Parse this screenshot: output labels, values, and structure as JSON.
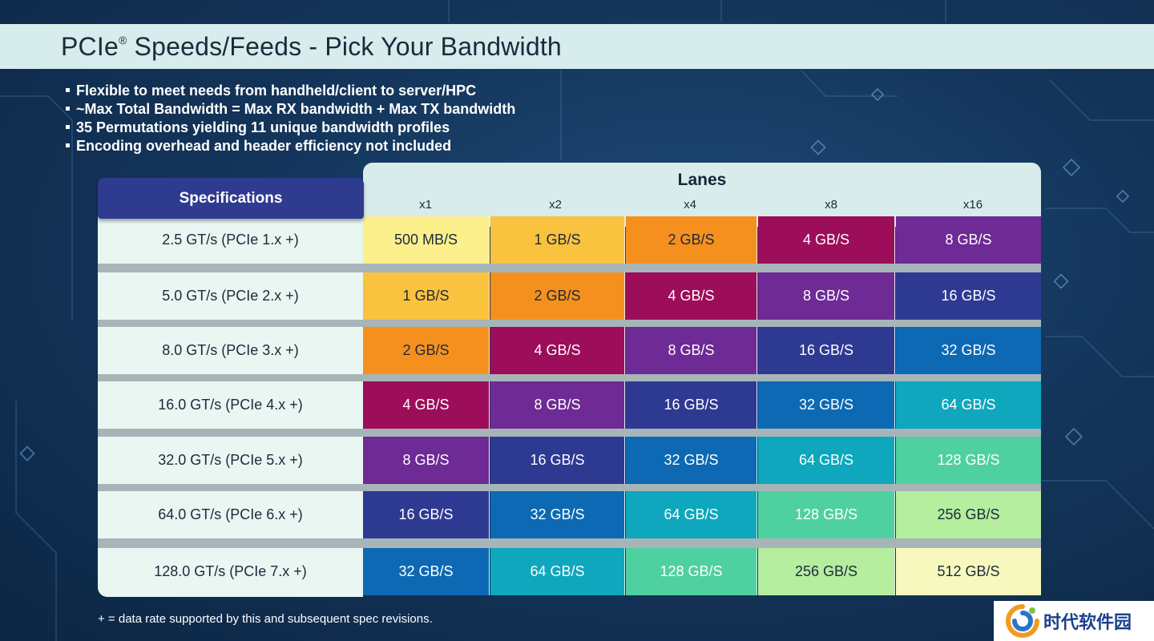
{
  "slide": {
    "title_main": "PCIe",
    "title_mark": "®",
    "title_rest": " Speeds/Feeds - Pick Your Bandwidth"
  },
  "bullets": [
    "Flexible to meet needs from handheld/client to server/HPC",
    "~Max Total Bandwidth = Max RX bandwidth + Max TX bandwidth",
    "35 Permutations yielding 11 unique bandwidth profiles",
    "Encoding overhead and header efficiency not included"
  ],
  "table": {
    "spec_header": "Specifications",
    "lanes_header": "Lanes",
    "lanes": [
      "x1",
      "x2",
      "x4",
      "x8",
      "x16"
    ],
    "rows": [
      {
        "spec": "2.5 GT/s (PCIe 1.x +)",
        "cells": [
          "500 MB/S",
          "1 GB/S",
          "2 GB/S",
          "4 GB/S",
          "8 GB/S"
        ]
      },
      {
        "spec": "5.0 GT/s (PCIe 2.x +)",
        "cells": [
          "1 GB/S",
          "2 GB/S",
          "4 GB/S",
          "8 GB/S",
          "16 GB/S"
        ]
      },
      {
        "spec": "8.0 GT/s (PCIe 3.x +)",
        "cells": [
          "2 GB/S",
          "4 GB/S",
          "8 GB/S",
          "16 GB/S",
          "32 GB/S"
        ]
      },
      {
        "spec": "16.0 GT/s (PCIe 4.x +)",
        "cells": [
          "4 GB/S",
          "8 GB/S",
          "16 GB/S",
          "32 GB/S",
          "64 GB/S"
        ]
      },
      {
        "spec": "32.0 GT/s (PCIe 5.x +)",
        "cells": [
          "8 GB/S",
          "16 GB/S",
          "32 GB/S",
          "64 GB/S",
          "128 GB/S"
        ]
      },
      {
        "spec": "64.0 GT/s (PCIe 6.x +)",
        "cells": [
          "16 GB/S",
          "32 GB/S",
          "64 GB/S",
          "128 GB/S",
          "256 GB/S"
        ]
      },
      {
        "spec": "128.0 GT/s (PCIe 7.x +)",
        "cells": [
          "32 GB/S",
          "64 GB/S",
          "128 GB/S",
          "256 GB/S",
          "512 GB/S"
        ]
      }
    ],
    "colors": {
      "500 MB/S": {
        "bg": "#fbf08c",
        "fg": "#1c2a3a"
      },
      "1 GB/S": {
        "bg": "#f9c23f",
        "fg": "#1c2a3a"
      },
      "2 GB/S": {
        "bg": "#f5901f",
        "fg": "#1c2a3a"
      },
      "4 GB/S": {
        "bg": "#9c0d5a",
        "fg": "#ffffff"
      },
      "8 GB/S": {
        "bg": "#6e2a95",
        "fg": "#ffffff"
      },
      "16 GB/S": {
        "bg": "#2e3a92",
        "fg": "#ffffff"
      },
      "32 GB/S": {
        "bg": "#0d69b3",
        "fg": "#ffffff"
      },
      "64 GB/S": {
        "bg": "#0ea7bd",
        "fg": "#ffffff"
      },
      "128 GB/S": {
        "bg": "#4fd0a0",
        "fg": "#ffffff"
      },
      "256 GB/S": {
        "bg": "#b5ee9e",
        "fg": "#1c2a3a"
      },
      "512 GB/S": {
        "bg": "#f7f8be",
        "fg": "#1c2a3a"
      }
    }
  },
  "footnote": "+ = data rate supported by this and subsequent spec revisions.",
  "watermark": {
    "text": "时代软件园"
  }
}
